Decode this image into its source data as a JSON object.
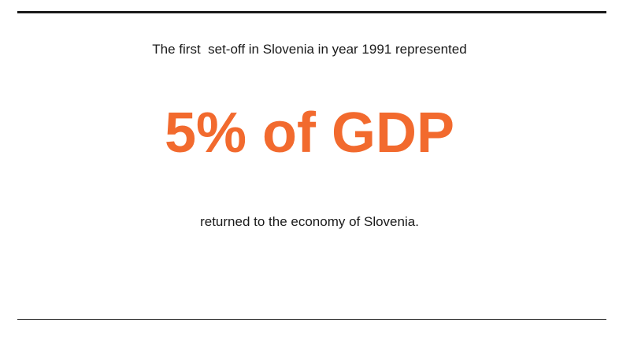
{
  "intro": "The first  set-off in Slovenia in year 1991 represented",
  "highlight": "5% of GDP",
  "outro": "returned to the economy of Slovenia."
}
